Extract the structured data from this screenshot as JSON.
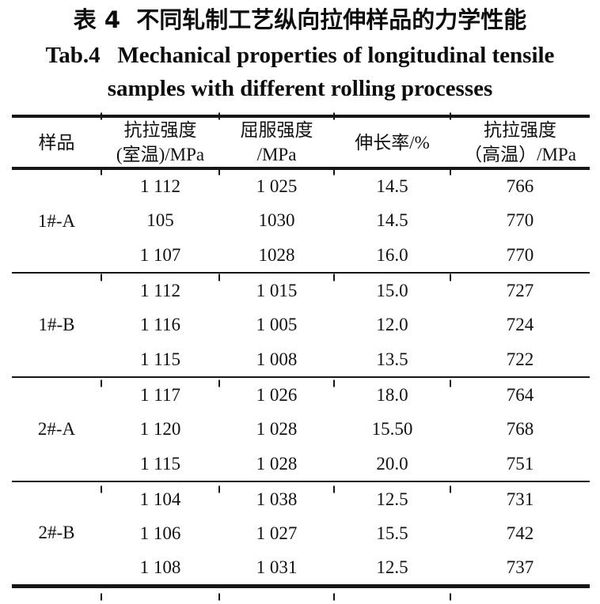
{
  "titles": {
    "chinese": "表 4  不同轧制工艺纵向拉伸样品的力学性能",
    "english_line1": "Tab.4   Mechanical properties of longitudinal tensile",
    "english_line2": "samples with different rolling processes"
  },
  "table": {
    "headers": [
      {
        "line1": "样品",
        "line2": ""
      },
      {
        "line1": "抗拉强度",
        "line2": "(室温)/MPa"
      },
      {
        "line1": "屈服强度",
        "line2": "/MPa"
      },
      {
        "line1": "伸长率/%",
        "line2": ""
      },
      {
        "line1": "抗拉强度",
        "line2": "（高温）/MPa"
      }
    ],
    "groups": [
      {
        "sample": "1#-A",
        "rows": [
          [
            "1 112",
            "1 025",
            "14.5",
            "766"
          ],
          [
            "105",
            "1030",
            "14.5",
            "770"
          ],
          [
            "1 107",
            "1028",
            "16.0",
            "770"
          ]
        ]
      },
      {
        "sample": "1#-B",
        "rows": [
          [
            "1 112",
            "1 015",
            "15.0",
            "727"
          ],
          [
            "1 116",
            "1 005",
            "12.0",
            "724"
          ],
          [
            "1 115",
            "1 008",
            "13.5",
            "722"
          ]
        ]
      },
      {
        "sample": "2#-A",
        "rows": [
          [
            "1 117",
            "1 026",
            "18.0",
            "764"
          ],
          [
            "1 120",
            "1 028",
            "15.50",
            "768"
          ],
          [
            "1 115",
            "1 028",
            "20.0",
            "751"
          ]
        ]
      },
      {
        "sample": "2#-B",
        "rows": [
          [
            "1 104",
            "1 038",
            "12.5",
            "731"
          ],
          [
            "1 106",
            "1 027",
            "15.5",
            "742"
          ],
          [
            "1 108",
            "1 031",
            "12.5",
            "737"
          ]
        ]
      }
    ]
  }
}
